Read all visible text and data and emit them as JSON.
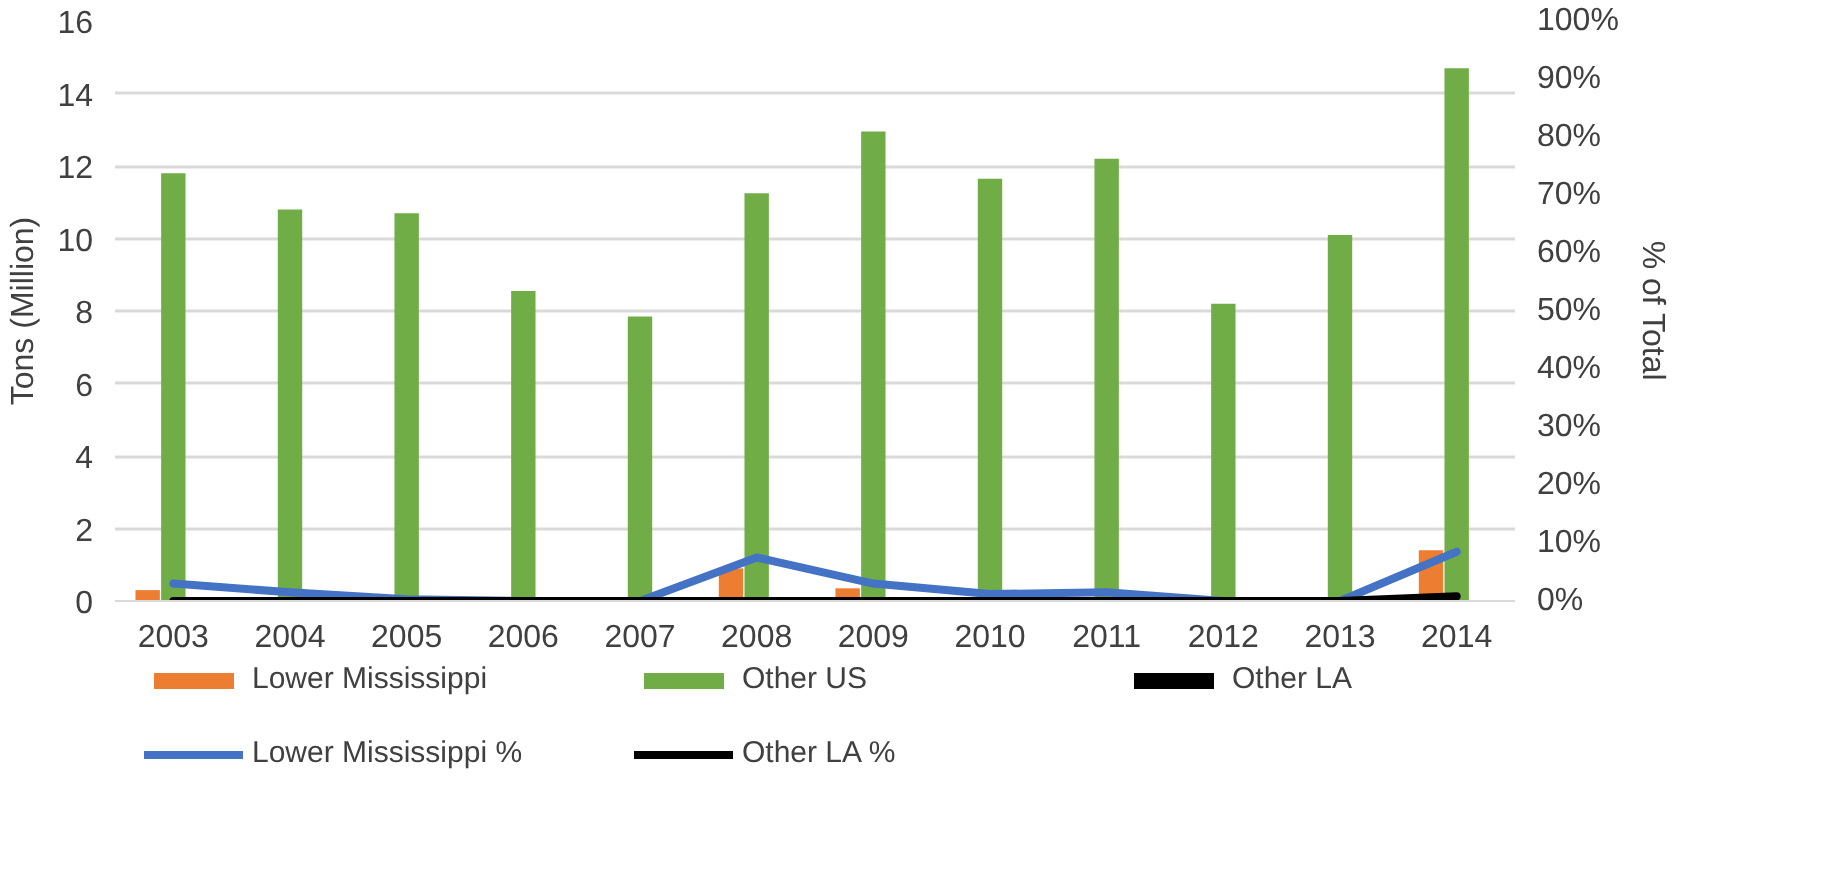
{
  "chart_data": {
    "type": "bar",
    "categories": [
      "2003",
      "2004",
      "2005",
      "2006",
      "2007",
      "2008",
      "2009",
      "2010",
      "2011",
      "2012",
      "2013",
      "2014"
    ],
    "ylabel": "Tons (Million)",
    "y2label": "% of Total",
    "ylim": [
      0,
      16
    ],
    "yticks": [
      0,
      2,
      4,
      6,
      8,
      10,
      12,
      14,
      16
    ],
    "y2lim": [
      0,
      100
    ],
    "y2ticks": [
      {
        "value": 0,
        "label": "0%"
      },
      {
        "value": 10,
        "label": "10%"
      },
      {
        "value": 20,
        "label": "20%"
      },
      {
        "value": 30,
        "label": "30%"
      },
      {
        "value": 40,
        "label": "40%"
      },
      {
        "value": 50,
        "label": "50%"
      },
      {
        "value": 60,
        "label": "60%"
      },
      {
        "value": 70,
        "label": "70%"
      },
      {
        "value": 80,
        "label": "80%"
      },
      {
        "value": 90,
        "label": "90%"
      },
      {
        "value": 100,
        "label": "100%"
      }
    ],
    "grid": "y",
    "legend": "bottom",
    "series": [
      {
        "name": "Lower Mississippi",
        "color": "#ed7d31",
        "values": [
          0.3,
          0,
          0,
          0,
          0,
          0.9,
          0.35,
          0,
          0,
          0,
          0,
          1.4
        ]
      },
      {
        "name": "Other US",
        "color": "#70ad47",
        "values": [
          11.8,
          10.8,
          10.7,
          8.55,
          7.85,
          11.25,
          12.95,
          11.65,
          12.2,
          8.2,
          10.1,
          14.7
        ]
      },
      {
        "name": "Other LA",
        "color": "#000000",
        "values": [
          0,
          0,
          0,
          0,
          0,
          0,
          0,
          0,
          0,
          0,
          0,
          0
        ]
      },
      {
        "name": "Lower Mississippi %",
        "type": "line",
        "axis": "y2",
        "color": "#4472c4",
        "values": [
          3,
          1.5,
          0.3,
          0,
          0,
          7.5,
          3,
          1.2,
          1.5,
          0,
          0,
          8.5
        ]
      },
      {
        "name": "Other LA %",
        "type": "line",
        "axis": "y2",
        "color": "#000000",
        "values": [
          0,
          0,
          0,
          0,
          0,
          0,
          0,
          0,
          0,
          0,
          0,
          0.8
        ]
      }
    ]
  }
}
